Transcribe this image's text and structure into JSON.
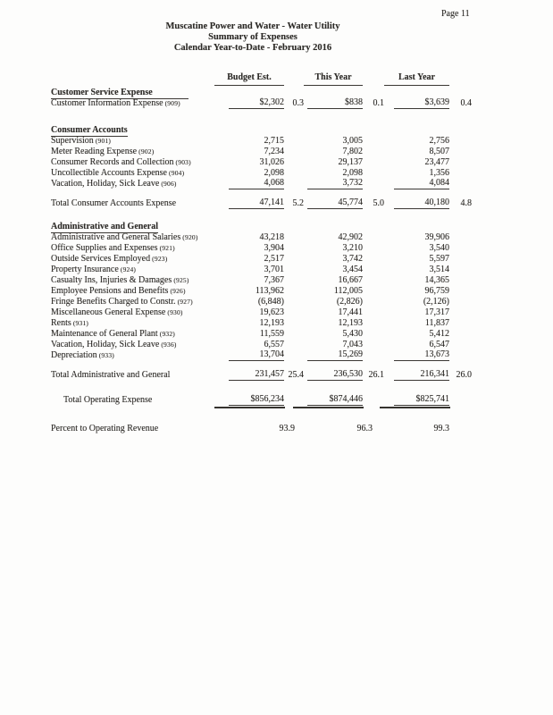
{
  "page": {
    "page_number": "Page 11"
  },
  "header": {
    "title_line1": "Muscatine Power and Water - Water Utility",
    "title_line2": "Summary of Expenses",
    "title_line3": "Calendar Year-to-Date - February 2016"
  },
  "columns": {
    "budget": "Budget Est.",
    "this_year": "This Year",
    "last_year": "Last Year"
  },
  "colors": {
    "paper": "#fdfdfc",
    "ink": "#2c2a27",
    "rule": "#3b3834"
  },
  "rows": [
    {
      "type": "section",
      "label": "Customer Service Expense",
      "wide_rule": true
    },
    {
      "type": "item",
      "label": "Customer Information Expense",
      "acct": "(909)",
      "amt1": "$2,302",
      "pct1": "0.3",
      "amt2": "$838",
      "pct2": "0.1",
      "amt3": "$3,639",
      "pct3": "0.4",
      "ul": true
    },
    {
      "type": "spacer",
      "h": 18
    },
    {
      "type": "section",
      "label": "Consumer Accounts"
    },
    {
      "type": "item",
      "label": "Supervision",
      "acct": "(901)",
      "amt1": "2,715",
      "amt2": "3,005",
      "amt3": "2,756"
    },
    {
      "type": "item",
      "label": "Meter Reading Expense",
      "acct": "(902)",
      "amt1": "7,234",
      "amt2": "7,802",
      "amt3": "8,507"
    },
    {
      "type": "item",
      "label": "Consumer Records and Collection",
      "acct": "(903)",
      "amt1": "31,026",
      "amt2": "29,137",
      "amt3": "23,477"
    },
    {
      "type": "item",
      "label": "Uncollectible Accounts Expense",
      "acct": "(904)",
      "amt1": "2,098",
      "amt2": "2,098",
      "amt3": "1,356"
    },
    {
      "type": "item",
      "label": "Vacation, Holiday, Sick Leave",
      "acct": "(906)",
      "amt1": "4,068",
      "amt2": "3,732",
      "amt3": "4,084",
      "ul": true
    },
    {
      "type": "spacer",
      "h": 10
    },
    {
      "type": "total",
      "label": "Total Consumer Accounts Expense",
      "amt1": "47,141",
      "pct1": "5.2",
      "amt2": "45,774",
      "pct2": "5.0",
      "amt3": "40,180",
      "pct3": "4.8",
      "ul": true
    },
    {
      "type": "spacer",
      "h": 14
    },
    {
      "type": "section",
      "label": "Administrative and General"
    },
    {
      "type": "item",
      "label": "Administrative and General Salaries",
      "acct": "(920)",
      "amt1": "43,218",
      "amt2": "42,902",
      "amt3": "39,906"
    },
    {
      "type": "item",
      "label": "Office Supplies and Expenses",
      "acct": "(921)",
      "amt1": "3,904",
      "amt2": "3,210",
      "amt3": "3,540"
    },
    {
      "type": "item",
      "label": "Outside Services Employed",
      "acct": "(923)",
      "amt1": "2,517",
      "amt2": "3,742",
      "amt3": "5,597"
    },
    {
      "type": "item",
      "label": "Property Insurance",
      "acct": "(924)",
      "amt1": "3,701",
      "amt2": "3,454",
      "amt3": "3,514"
    },
    {
      "type": "item",
      "label": "Casualty Ins, Injuries & Damages",
      "acct": "(925)",
      "amt1": "7,367",
      "amt2": "16,667",
      "amt3": "14,365"
    },
    {
      "type": "item",
      "label": "Employee Pensions and Benefits",
      "acct": "(926)",
      "amt1": "113,962",
      "amt2": "112,005",
      "amt3": "96,759"
    },
    {
      "type": "item",
      "label": "Fringe Benefits Charged to Constr.",
      "acct": "(927)",
      "amt1": "(6,848)",
      "amt2": "(2,826)",
      "amt3": "(2,126)"
    },
    {
      "type": "item",
      "label": "Miscellaneous General Expense",
      "acct": "(930)",
      "amt1": "19,623",
      "amt2": "17,441",
      "amt3": "17,317"
    },
    {
      "type": "item",
      "label": "Rents",
      "acct": "(931)",
      "amt1": "12,193",
      "amt2": "12,193",
      "amt3": "11,837"
    },
    {
      "type": "item",
      "label": "Maintenance of General Plant",
      "acct": "(932)",
      "amt1": "11,559",
      "amt2": "5,430",
      "amt3": "5,412"
    },
    {
      "type": "item",
      "label": "Vacation, Holiday, Sick Leave",
      "acct": "(936)",
      "amt1": "6,557",
      "amt2": "7,043",
      "amt3": "6,547"
    },
    {
      "type": "item",
      "label": "Depreciation",
      "acct": "(933)",
      "amt1": "13,704",
      "amt2": "15,269",
      "amt3": "13,673",
      "ul": true
    },
    {
      "type": "spacer",
      "h": 10
    },
    {
      "type": "total",
      "label": "Total Administrative and General",
      "amt1": "231,457",
      "pct1": "25.4",
      "amt2": "236,530",
      "pct2": "26.1",
      "amt3": "216,341",
      "pct3": "26.0",
      "ul": true
    },
    {
      "type": "spacer",
      "h": 16
    },
    {
      "type": "total",
      "label": "Total Operating Expense",
      "indent": true,
      "amt1": "$856,234",
      "amt2": "$874,446",
      "amt3": "$825,741",
      "dbl": true
    },
    {
      "type": "spacer",
      "h": 20
    },
    {
      "type": "percent",
      "label": "Percent to Operating Revenue",
      "pct1": "93.9",
      "pct2": "96.3",
      "pct3": "99.3"
    }
  ]
}
